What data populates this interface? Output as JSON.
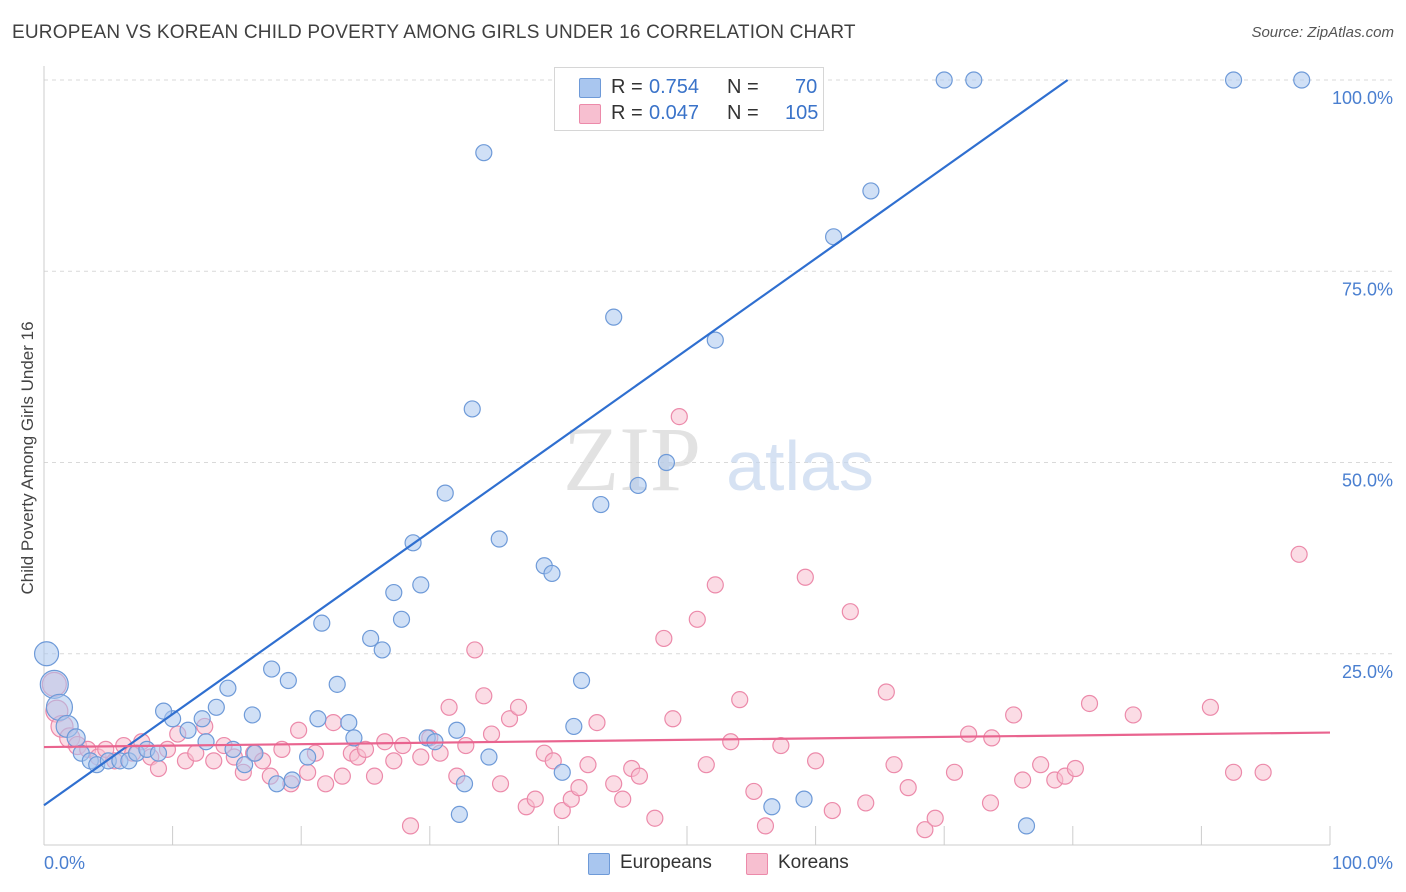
{
  "header": {
    "title": "EUROPEAN VS KOREAN CHILD POVERTY AMONG GIRLS UNDER 16 CORRELATION CHART",
    "source": "Source: ZipAtlas.com"
  },
  "watermark": {
    "part1": "ZIP",
    "part2": "atlas"
  },
  "stats": {
    "european": {
      "r_label": "R =",
      "r_value": "0.754",
      "n_label": "N =",
      "n_value": "70"
    },
    "korean": {
      "r_label": "R =",
      "r_value": "0.047",
      "n_label": "N =",
      "n_value": "105"
    }
  },
  "legend": {
    "europeans": "Europeans",
    "koreans": "Koreans"
  },
  "colors": {
    "european_fill": "#a9c6ef",
    "european_stroke": "#6e9ad8",
    "european_line": "#2f6fd0",
    "korean_fill": "#f7bfd0",
    "korean_stroke": "#ec8aaa",
    "korean_line": "#e9648f",
    "tick_label": "#4a7fd0",
    "grid": "#d9d9d9"
  },
  "chart_data": {
    "type": "scatter",
    "title": "EUROPEAN VS KOREAN CHILD POVERTY AMONG GIRLS UNDER 16 CORRELATION CHART",
    "xlabel": "",
    "ylabel": "Child Poverty Among Girls Under 16",
    "xlim": [
      0,
      100
    ],
    "ylim": [
      0,
      100
    ],
    "x_tick_labels": [
      "0.0%",
      "100.0%"
    ],
    "y_tick_labels": [
      "25.0%",
      "50.0%",
      "75.0%",
      "100.0%"
    ],
    "y_ticks": [
      25,
      50,
      75,
      100
    ],
    "grid": true,
    "legend_position": "bottom-center",
    "series": [
      {
        "name": "Europeans",
        "r": 0.754,
        "n": 70,
        "trend": {
          "x": [
            0,
            79.6
          ],
          "y": [
            5.2,
            100
          ]
        },
        "points": [
          {
            "x": 0.2,
            "y": 25,
            "s": 12
          },
          {
            "x": 0.8,
            "y": 21,
            "s": 14
          },
          {
            "x": 1.2,
            "y": 18,
            "s": 13
          },
          {
            "x": 1.8,
            "y": 15.5,
            "s": 11
          },
          {
            "x": 2.5,
            "y": 14,
            "s": 9
          },
          {
            "x": 2.9,
            "y": 12,
            "s": 8
          },
          {
            "x": 3.6,
            "y": 11,
            "s": 8
          },
          {
            "x": 4.1,
            "y": 10.5,
            "s": 8
          },
          {
            "x": 5,
            "y": 11,
            "s": 8
          },
          {
            "x": 5.9,
            "y": 11,
            "s": 8
          },
          {
            "x": 6.6,
            "y": 11,
            "s": 8
          },
          {
            "x": 7.2,
            "y": 12,
            "s": 8
          },
          {
            "x": 8,
            "y": 12.5,
            "s": 8
          },
          {
            "x": 8.9,
            "y": 12,
            "s": 8
          },
          {
            "x": 10,
            "y": 16.5,
            "s": 8
          },
          {
            "x": 9.3,
            "y": 17.5,
            "s": 8
          },
          {
            "x": 11.2,
            "y": 15,
            "s": 8
          },
          {
            "x": 12.3,
            "y": 16.5,
            "s": 8
          },
          {
            "x": 13.4,
            "y": 18,
            "s": 8
          },
          {
            "x": 14.3,
            "y": 20.5,
            "s": 8
          },
          {
            "x": 12.6,
            "y": 13.5,
            "s": 8
          },
          {
            "x": 14.7,
            "y": 12.5,
            "s": 8
          },
          {
            "x": 15.6,
            "y": 10.5,
            "s": 8
          },
          {
            "x": 16.2,
            "y": 17,
            "s": 8
          },
          {
            "x": 16.4,
            "y": 12,
            "s": 8
          },
          {
            "x": 17.7,
            "y": 23,
            "s": 8
          },
          {
            "x": 18.1,
            "y": 8,
            "s": 8
          },
          {
            "x": 19,
            "y": 21.5,
            "s": 8
          },
          {
            "x": 19.3,
            "y": 8.5,
            "s": 8
          },
          {
            "x": 20.5,
            "y": 11.5,
            "s": 8
          },
          {
            "x": 21.3,
            "y": 16.5,
            "s": 8
          },
          {
            "x": 21.6,
            "y": 29,
            "s": 8
          },
          {
            "x": 22.8,
            "y": 21,
            "s": 8
          },
          {
            "x": 23.7,
            "y": 16,
            "s": 8
          },
          {
            "x": 24.1,
            "y": 14,
            "s": 8
          },
          {
            "x": 25.4,
            "y": 27,
            "s": 8
          },
          {
            "x": 26.3,
            "y": 25.5,
            "s": 8
          },
          {
            "x": 27.2,
            "y": 33,
            "s": 8
          },
          {
            "x": 27.8,
            "y": 29.5,
            "s": 8
          },
          {
            "x": 28.7,
            "y": 39.5,
            "s": 8
          },
          {
            "x": 29.3,
            "y": 34,
            "s": 8
          },
          {
            "x": 29.8,
            "y": 14,
            "s": 8
          },
          {
            "x": 30.4,
            "y": 13.5,
            "s": 8
          },
          {
            "x": 31.2,
            "y": 46,
            "s": 8
          },
          {
            "x": 32.1,
            "y": 15,
            "s": 8
          },
          {
            "x": 32.3,
            "y": 4,
            "s": 8
          },
          {
            "x": 32.7,
            "y": 8,
            "s": 8
          },
          {
            "x": 33.3,
            "y": 57,
            "s": 8
          },
          {
            "x": 34.2,
            "y": 90.5,
            "s": 8
          },
          {
            "x": 34.6,
            "y": 11.5,
            "s": 8
          },
          {
            "x": 35.4,
            "y": 40,
            "s": 8
          },
          {
            "x": 38.9,
            "y": 36.5,
            "s": 8
          },
          {
            "x": 39.5,
            "y": 35.5,
            "s": 8
          },
          {
            "x": 40.3,
            "y": 9.5,
            "s": 8
          },
          {
            "x": 41.2,
            "y": 15.5,
            "s": 8
          },
          {
            "x": 41.8,
            "y": 21.5,
            "s": 8
          },
          {
            "x": 43.3,
            "y": 44.5,
            "s": 8
          },
          {
            "x": 44.3,
            "y": 69,
            "s": 8
          },
          {
            "x": 46.2,
            "y": 47,
            "s": 8
          },
          {
            "x": 48.4,
            "y": 50,
            "s": 8
          },
          {
            "x": 52.2,
            "y": 66,
            "s": 8
          },
          {
            "x": 56.6,
            "y": 5,
            "s": 8
          },
          {
            "x": 61.4,
            "y": 79.5,
            "s": 8
          },
          {
            "x": 64.3,
            "y": 85.5,
            "s": 8
          },
          {
            "x": 70,
            "y": 100,
            "s": 8
          },
          {
            "x": 72.3,
            "y": 100,
            "s": 8
          },
          {
            "x": 76.4,
            "y": 2.5,
            "s": 8
          },
          {
            "x": 92.5,
            "y": 100,
            "s": 8
          },
          {
            "x": 97.8,
            "y": 100,
            "s": 8
          },
          {
            "x": 59.1,
            "y": 6,
            "s": 8
          }
        ]
      },
      {
        "name": "Koreans",
        "r": 0.047,
        "n": 105,
        "trend": {
          "x": [
            0,
            100
          ],
          "y": [
            12.8,
            14.7
          ]
        },
        "points": [
          {
            "x": 0.8,
            "y": 21,
            "s": 12
          },
          {
            "x": 1,
            "y": 17.5,
            "s": 11
          },
          {
            "x": 1.4,
            "y": 15.5,
            "s": 11
          },
          {
            "x": 2,
            "y": 14,
            "s": 10
          },
          {
            "x": 2.6,
            "y": 13,
            "s": 9
          },
          {
            "x": 3.4,
            "y": 12.5,
            "s": 8
          },
          {
            "x": 4.2,
            "y": 11.5,
            "s": 8
          },
          {
            "x": 4.8,
            "y": 12.5,
            "s": 8
          },
          {
            "x": 5.5,
            "y": 11,
            "s": 8
          },
          {
            "x": 6.2,
            "y": 13,
            "s": 8
          },
          {
            "x": 6.9,
            "y": 12,
            "s": 8
          },
          {
            "x": 7.6,
            "y": 13.5,
            "s": 8
          },
          {
            "x": 8.3,
            "y": 11.5,
            "s": 8
          },
          {
            "x": 8.9,
            "y": 10,
            "s": 8
          },
          {
            "x": 9.6,
            "y": 12.5,
            "s": 8
          },
          {
            "x": 10.4,
            "y": 14.5,
            "s": 8
          },
          {
            "x": 11,
            "y": 11,
            "s": 8
          },
          {
            "x": 11.8,
            "y": 12,
            "s": 8
          },
          {
            "x": 12.5,
            "y": 15.5,
            "s": 8
          },
          {
            "x": 13.2,
            "y": 11,
            "s": 8
          },
          {
            "x": 14,
            "y": 13,
            "s": 8
          },
          {
            "x": 14.8,
            "y": 11.5,
            "s": 8
          },
          {
            "x": 15.5,
            "y": 9.5,
            "s": 8
          },
          {
            "x": 16.3,
            "y": 12,
            "s": 8
          },
          {
            "x": 17,
            "y": 11,
            "s": 8
          },
          {
            "x": 17.6,
            "y": 9,
            "s": 8
          },
          {
            "x": 18.5,
            "y": 12.5,
            "s": 8
          },
          {
            "x": 19.2,
            "y": 8,
            "s": 8
          },
          {
            "x": 19.8,
            "y": 15,
            "s": 8
          },
          {
            "x": 20.5,
            "y": 9.5,
            "s": 8
          },
          {
            "x": 21.1,
            "y": 12,
            "s": 8
          },
          {
            "x": 21.9,
            "y": 8,
            "s": 8
          },
          {
            "x": 22.5,
            "y": 16,
            "s": 8
          },
          {
            "x": 23.2,
            "y": 9,
            "s": 8
          },
          {
            "x": 23.9,
            "y": 12,
            "s": 8
          },
          {
            "x": 24.4,
            "y": 11.5,
            "s": 8
          },
          {
            "x": 25,
            "y": 12.5,
            "s": 8
          },
          {
            "x": 25.7,
            "y": 9,
            "s": 8
          },
          {
            "x": 26.5,
            "y": 13.5,
            "s": 8
          },
          {
            "x": 27.2,
            "y": 11,
            "s": 8
          },
          {
            "x": 27.9,
            "y": 13,
            "s": 8
          },
          {
            "x": 28.5,
            "y": 2.5,
            "s": 8
          },
          {
            "x": 29.3,
            "y": 11.5,
            "s": 8
          },
          {
            "x": 30,
            "y": 14,
            "s": 8
          },
          {
            "x": 30.8,
            "y": 12,
            "s": 8
          },
          {
            "x": 31.5,
            "y": 18,
            "s": 8
          },
          {
            "x": 32.1,
            "y": 9,
            "s": 8
          },
          {
            "x": 32.8,
            "y": 13,
            "s": 8
          },
          {
            "x": 33.5,
            "y": 25.5,
            "s": 8
          },
          {
            "x": 34.2,
            "y": 19.5,
            "s": 8
          },
          {
            "x": 34.8,
            "y": 14.5,
            "s": 8
          },
          {
            "x": 35.5,
            "y": 8,
            "s": 8
          },
          {
            "x": 36.2,
            "y": 16.5,
            "s": 8
          },
          {
            "x": 36.9,
            "y": 18,
            "s": 8
          },
          {
            "x": 37.5,
            "y": 5,
            "s": 8
          },
          {
            "x": 38.2,
            "y": 6,
            "s": 8
          },
          {
            "x": 38.9,
            "y": 12,
            "s": 8
          },
          {
            "x": 39.6,
            "y": 11,
            "s": 8
          },
          {
            "x": 40.3,
            "y": 4.5,
            "s": 8
          },
          {
            "x": 41,
            "y": 6,
            "s": 8
          },
          {
            "x": 41.6,
            "y": 7.5,
            "s": 8
          },
          {
            "x": 42.3,
            "y": 10.5,
            "s": 8
          },
          {
            "x": 43,
            "y": 16,
            "s": 8
          },
          {
            "x": 44.3,
            "y": 8,
            "s": 8
          },
          {
            "x": 45,
            "y": 6,
            "s": 8
          },
          {
            "x": 45.7,
            "y": 10,
            "s": 8
          },
          {
            "x": 46.3,
            "y": 9,
            "s": 8
          },
          {
            "x": 47.5,
            "y": 3.5,
            "s": 8
          },
          {
            "x": 48.2,
            "y": 27,
            "s": 8
          },
          {
            "x": 48.9,
            "y": 16.5,
            "s": 8
          },
          {
            "x": 49.4,
            "y": 56,
            "s": 8
          },
          {
            "x": 50.8,
            "y": 29.5,
            "s": 8
          },
          {
            "x": 51.5,
            "y": 10.5,
            "s": 8
          },
          {
            "x": 52.2,
            "y": 34,
            "s": 8
          },
          {
            "x": 53.4,
            "y": 13.5,
            "s": 8
          },
          {
            "x": 54.1,
            "y": 19,
            "s": 8
          },
          {
            "x": 55.2,
            "y": 7,
            "s": 8
          },
          {
            "x": 56.1,
            "y": 2.5,
            "s": 8
          },
          {
            "x": 57.3,
            "y": 13,
            "s": 8
          },
          {
            "x": 59.2,
            "y": 35,
            "s": 8
          },
          {
            "x": 60,
            "y": 11,
            "s": 8
          },
          {
            "x": 61.3,
            "y": 4.5,
            "s": 8
          },
          {
            "x": 62.7,
            "y": 30.5,
            "s": 8
          },
          {
            "x": 63.9,
            "y": 5.5,
            "s": 8
          },
          {
            "x": 65.5,
            "y": 20,
            "s": 8
          },
          {
            "x": 66.1,
            "y": 10.5,
            "s": 8
          },
          {
            "x": 67.2,
            "y": 7.5,
            "s": 8
          },
          {
            "x": 68.5,
            "y": 2,
            "s": 8
          },
          {
            "x": 69.3,
            "y": 3.5,
            "s": 8
          },
          {
            "x": 70.8,
            "y": 9.5,
            "s": 8
          },
          {
            "x": 71.9,
            "y": 14.5,
            "s": 8
          },
          {
            "x": 73.7,
            "y": 14,
            "s": 8
          },
          {
            "x": 75.4,
            "y": 17,
            "s": 8
          },
          {
            "x": 76.1,
            "y": 8.5,
            "s": 8
          },
          {
            "x": 77.5,
            "y": 10.5,
            "s": 8
          },
          {
            "x": 78.6,
            "y": 8.5,
            "s": 8
          },
          {
            "x": 79.4,
            "y": 9,
            "s": 8
          },
          {
            "x": 80.2,
            "y": 10,
            "s": 8
          },
          {
            "x": 81.3,
            "y": 18.5,
            "s": 8
          },
          {
            "x": 84.7,
            "y": 17,
            "s": 8
          },
          {
            "x": 90.7,
            "y": 18,
            "s": 8
          },
          {
            "x": 92.5,
            "y": 9.5,
            "s": 8
          },
          {
            "x": 94.8,
            "y": 9.5,
            "s": 8
          },
          {
            "x": 97.6,
            "y": 38,
            "s": 8
          },
          {
            "x": 73.6,
            "y": 5.5,
            "s": 8
          }
        ]
      }
    ]
  }
}
